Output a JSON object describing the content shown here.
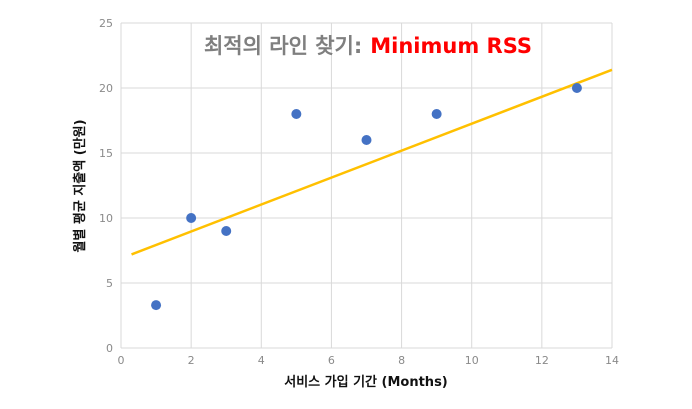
{
  "chart_data": {
    "type": "scatter",
    "title_prefix": "최적의 라인 찾기:",
    "title_highlight": "Minimum RSS",
    "xlabel": "서비스 가입 기간 (Months)",
    "ylabel": "월별 평균 지출액 (만원)",
    "xlim": [
      0,
      14
    ],
    "ylim": [
      0,
      25
    ],
    "x_ticks": [
      0,
      2,
      4,
      6,
      8,
      10,
      12,
      14
    ],
    "y_ticks": [
      0,
      5,
      10,
      15,
      20,
      25
    ],
    "grid": true,
    "series": [
      {
        "x": [
          1,
          2,
          3,
          5,
          7,
          9,
          13
        ],
        "y": [
          3.3,
          10,
          9,
          18,
          16,
          18,
          20
        ],
        "color": "#4472c4"
      }
    ],
    "fit_line": {
      "x": [
        0.3,
        14
      ],
      "y": [
        7.2,
        21.4
      ],
      "color": "#ffc000"
    },
    "highlight_color": "#ff0000",
    "title_color": "#7f7f7f"
  }
}
